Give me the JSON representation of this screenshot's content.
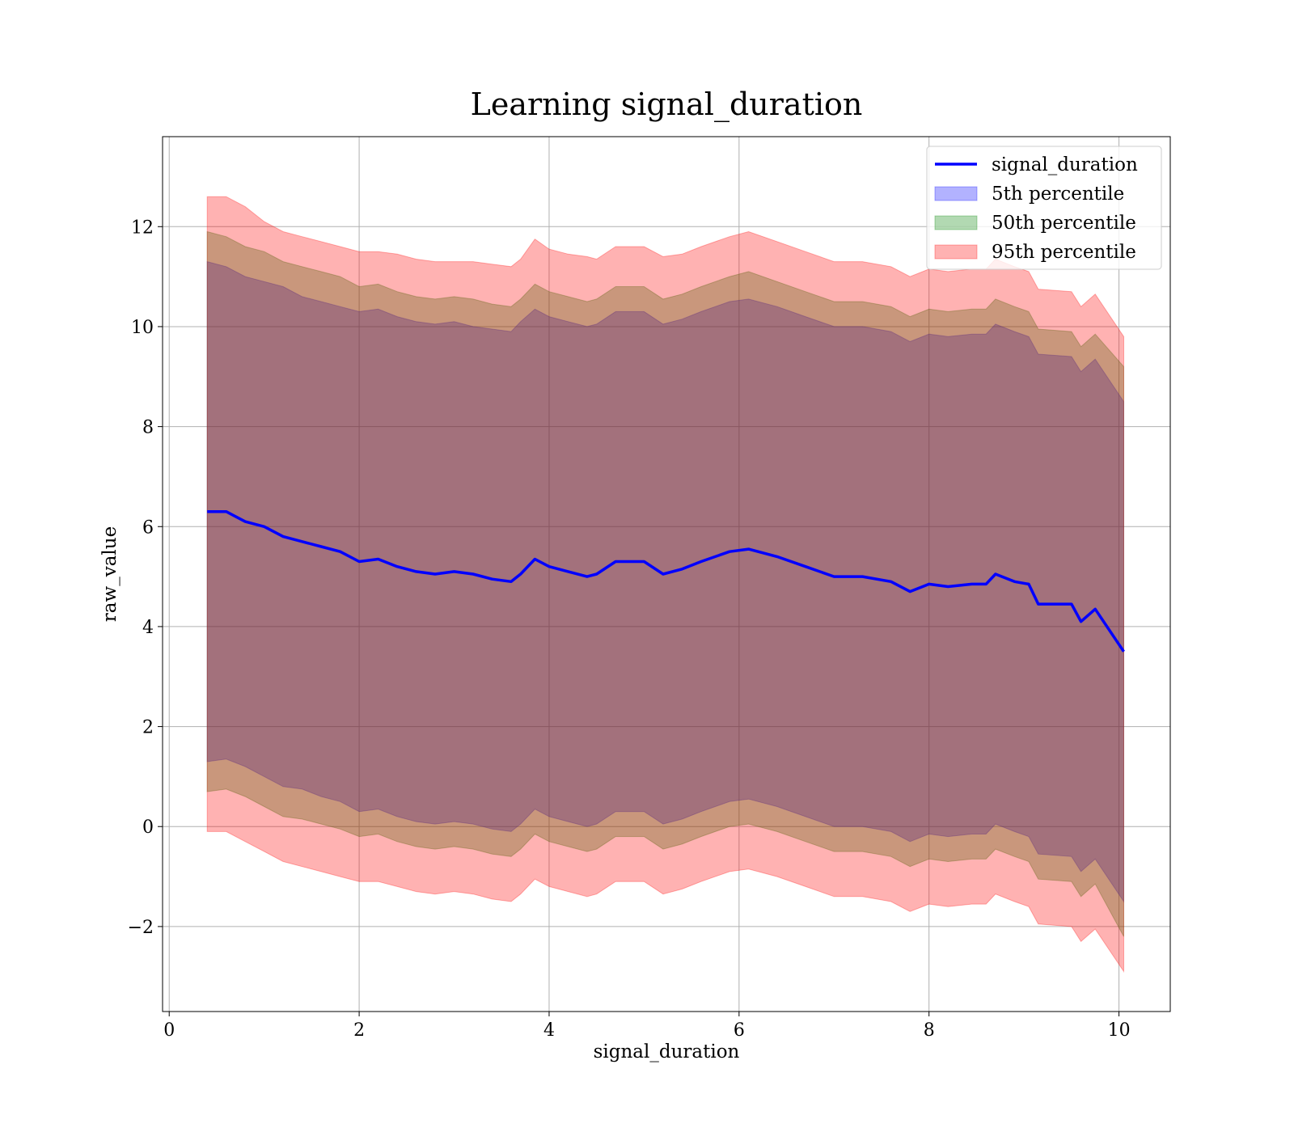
{
  "chart_data": {
    "type": "area",
    "title": "Learning signal_duration",
    "xlabel": "signal_duration",
    "ylabel": "raw_value",
    "xlim": [
      -0.07,
      10.54
    ],
    "ylim": [
      -3.7,
      13.8
    ],
    "grid": true,
    "legend_position": "top-right",
    "xticks": [
      0,
      2,
      4,
      6,
      8,
      10
    ],
    "xtick_labels": [
      "0",
      "2",
      "4",
      "6",
      "8",
      "10"
    ],
    "yticks": [
      -2,
      0,
      2,
      4,
      6,
      8,
      10,
      12
    ],
    "ytick_labels": [
      "−2",
      "0",
      "2",
      "4",
      "6",
      "8",
      "10",
      "12"
    ],
    "x": [
      0.4,
      0.6,
      0.8,
      1.0,
      1.2,
      1.4,
      1.6,
      1.8,
      2.0,
      2.2,
      2.4,
      2.6,
      2.8,
      3.0,
      3.2,
      3.4,
      3.6,
      3.7,
      3.85,
      4.0,
      4.2,
      4.4,
      4.5,
      4.7,
      5.0,
      5.2,
      5.4,
      5.6,
      5.9,
      6.1,
      6.4,
      6.7,
      7.0,
      7.3,
      7.6,
      7.8,
      8.0,
      8.2,
      8.45,
      8.6,
      8.7,
      8.9,
      9.05,
      9.15,
      9.5,
      9.6,
      9.75,
      10.05
    ],
    "series": [
      {
        "name": "signal_duration",
        "color": "#0000ff",
        "values": [
          6.3,
          6.3,
          6.1,
          6.0,
          5.8,
          5.7,
          5.6,
          5.5,
          5.3,
          5.35,
          5.2,
          5.1,
          5.05,
          5.1,
          5.05,
          4.95,
          4.9,
          5.05,
          5.35,
          5.2,
          5.1,
          5.0,
          5.05,
          5.3,
          5.3,
          5.05,
          5.15,
          5.3,
          5.5,
          5.55,
          5.4,
          5.2,
          5.0,
          5.0,
          4.9,
          4.7,
          4.85,
          4.8,
          4.85,
          4.85,
          5.05,
          4.9,
          4.85,
          4.45,
          4.45,
          4.1,
          4.35,
          3.5
        ]
      }
    ],
    "bands": [
      {
        "name": "5th percentile",
        "color": "#0000ff",
        "alpha": 0.3,
        "upper": [
          11.3,
          11.2,
          11.0,
          10.9,
          10.8,
          10.6,
          10.5,
          10.4,
          10.3,
          10.35,
          10.2,
          10.1,
          10.05,
          10.1,
          10.0,
          9.95,
          9.9,
          10.1,
          10.35,
          10.2,
          10.1,
          10.0,
          10.05,
          10.3,
          10.3,
          10.05,
          10.15,
          10.3,
          10.5,
          10.55,
          10.4,
          10.2,
          10.0,
          10.0,
          9.9,
          9.7,
          9.85,
          9.8,
          9.85,
          9.85,
          10.05,
          9.9,
          9.8,
          9.45,
          9.4,
          9.1,
          9.35,
          8.5
        ],
        "lower": [
          1.3,
          1.35,
          1.2,
          1.0,
          0.8,
          0.75,
          0.6,
          0.5,
          0.3,
          0.35,
          0.2,
          0.1,
          0.05,
          0.1,
          0.05,
          -0.05,
          -0.1,
          0.05,
          0.35,
          0.2,
          0.1,
          0.0,
          0.05,
          0.3,
          0.3,
          0.05,
          0.15,
          0.3,
          0.5,
          0.55,
          0.4,
          0.2,
          0.0,
          0.0,
          -0.1,
          -0.3,
          -0.15,
          -0.2,
          -0.15,
          -0.15,
          0.05,
          -0.1,
          -0.2,
          -0.55,
          -0.6,
          -0.9,
          -0.65,
          -1.5
        ]
      },
      {
        "name": "50th percentile",
        "color": "#008000",
        "alpha": 0.3,
        "upper": [
          11.9,
          11.8,
          11.6,
          11.5,
          11.3,
          11.2,
          11.1,
          11.0,
          10.8,
          10.85,
          10.7,
          10.6,
          10.55,
          10.6,
          10.55,
          10.45,
          10.4,
          10.55,
          10.85,
          10.7,
          10.6,
          10.5,
          10.55,
          10.8,
          10.8,
          10.55,
          10.65,
          10.8,
          11.0,
          11.1,
          10.9,
          10.7,
          10.5,
          10.5,
          10.4,
          10.2,
          10.35,
          10.3,
          10.35,
          10.35,
          10.55,
          10.4,
          10.3,
          9.95,
          9.9,
          9.6,
          9.85,
          9.2
        ],
        "lower": [
          0.7,
          0.75,
          0.6,
          0.4,
          0.2,
          0.15,
          0.05,
          -0.05,
          -0.2,
          -0.15,
          -0.3,
          -0.4,
          -0.45,
          -0.4,
          -0.45,
          -0.55,
          -0.6,
          -0.45,
          -0.15,
          -0.3,
          -0.4,
          -0.5,
          -0.45,
          -0.2,
          -0.2,
          -0.45,
          -0.35,
          -0.2,
          0.0,
          0.05,
          -0.1,
          -0.3,
          -0.5,
          -0.5,
          -0.6,
          -0.8,
          -0.65,
          -0.7,
          -0.65,
          -0.65,
          -0.45,
          -0.6,
          -0.7,
          -1.05,
          -1.1,
          -1.4,
          -1.15,
          -2.2
        ]
      },
      {
        "name": "95th percentile",
        "color": "#ff0000",
        "alpha": 0.3,
        "upper": [
          12.6,
          12.6,
          12.4,
          12.1,
          11.9,
          11.8,
          11.7,
          11.6,
          11.5,
          11.5,
          11.45,
          11.35,
          11.3,
          11.3,
          11.3,
          11.25,
          11.2,
          11.35,
          11.75,
          11.55,
          11.45,
          11.4,
          11.35,
          11.6,
          11.6,
          11.4,
          11.45,
          11.6,
          11.8,
          11.9,
          11.7,
          11.5,
          11.3,
          11.3,
          11.2,
          11.0,
          11.15,
          11.1,
          11.15,
          11.15,
          11.35,
          11.2,
          11.1,
          10.75,
          10.7,
          10.4,
          10.65,
          9.8
        ],
        "lower": [
          -0.1,
          -0.1,
          -0.3,
          -0.5,
          -0.7,
          -0.8,
          -0.9,
          -1.0,
          -1.1,
          -1.1,
          -1.2,
          -1.3,
          -1.35,
          -1.3,
          -1.35,
          -1.45,
          -1.5,
          -1.35,
          -1.05,
          -1.2,
          -1.3,
          -1.4,
          -1.35,
          -1.1,
          -1.1,
          -1.35,
          -1.25,
          -1.1,
          -0.9,
          -0.85,
          -1.0,
          -1.2,
          -1.4,
          -1.4,
          -1.5,
          -1.7,
          -1.55,
          -1.6,
          -1.55,
          -1.55,
          -1.35,
          -1.5,
          -1.6,
          -1.95,
          -2.0,
          -2.3,
          -2.05,
          -2.9
        ]
      }
    ]
  }
}
